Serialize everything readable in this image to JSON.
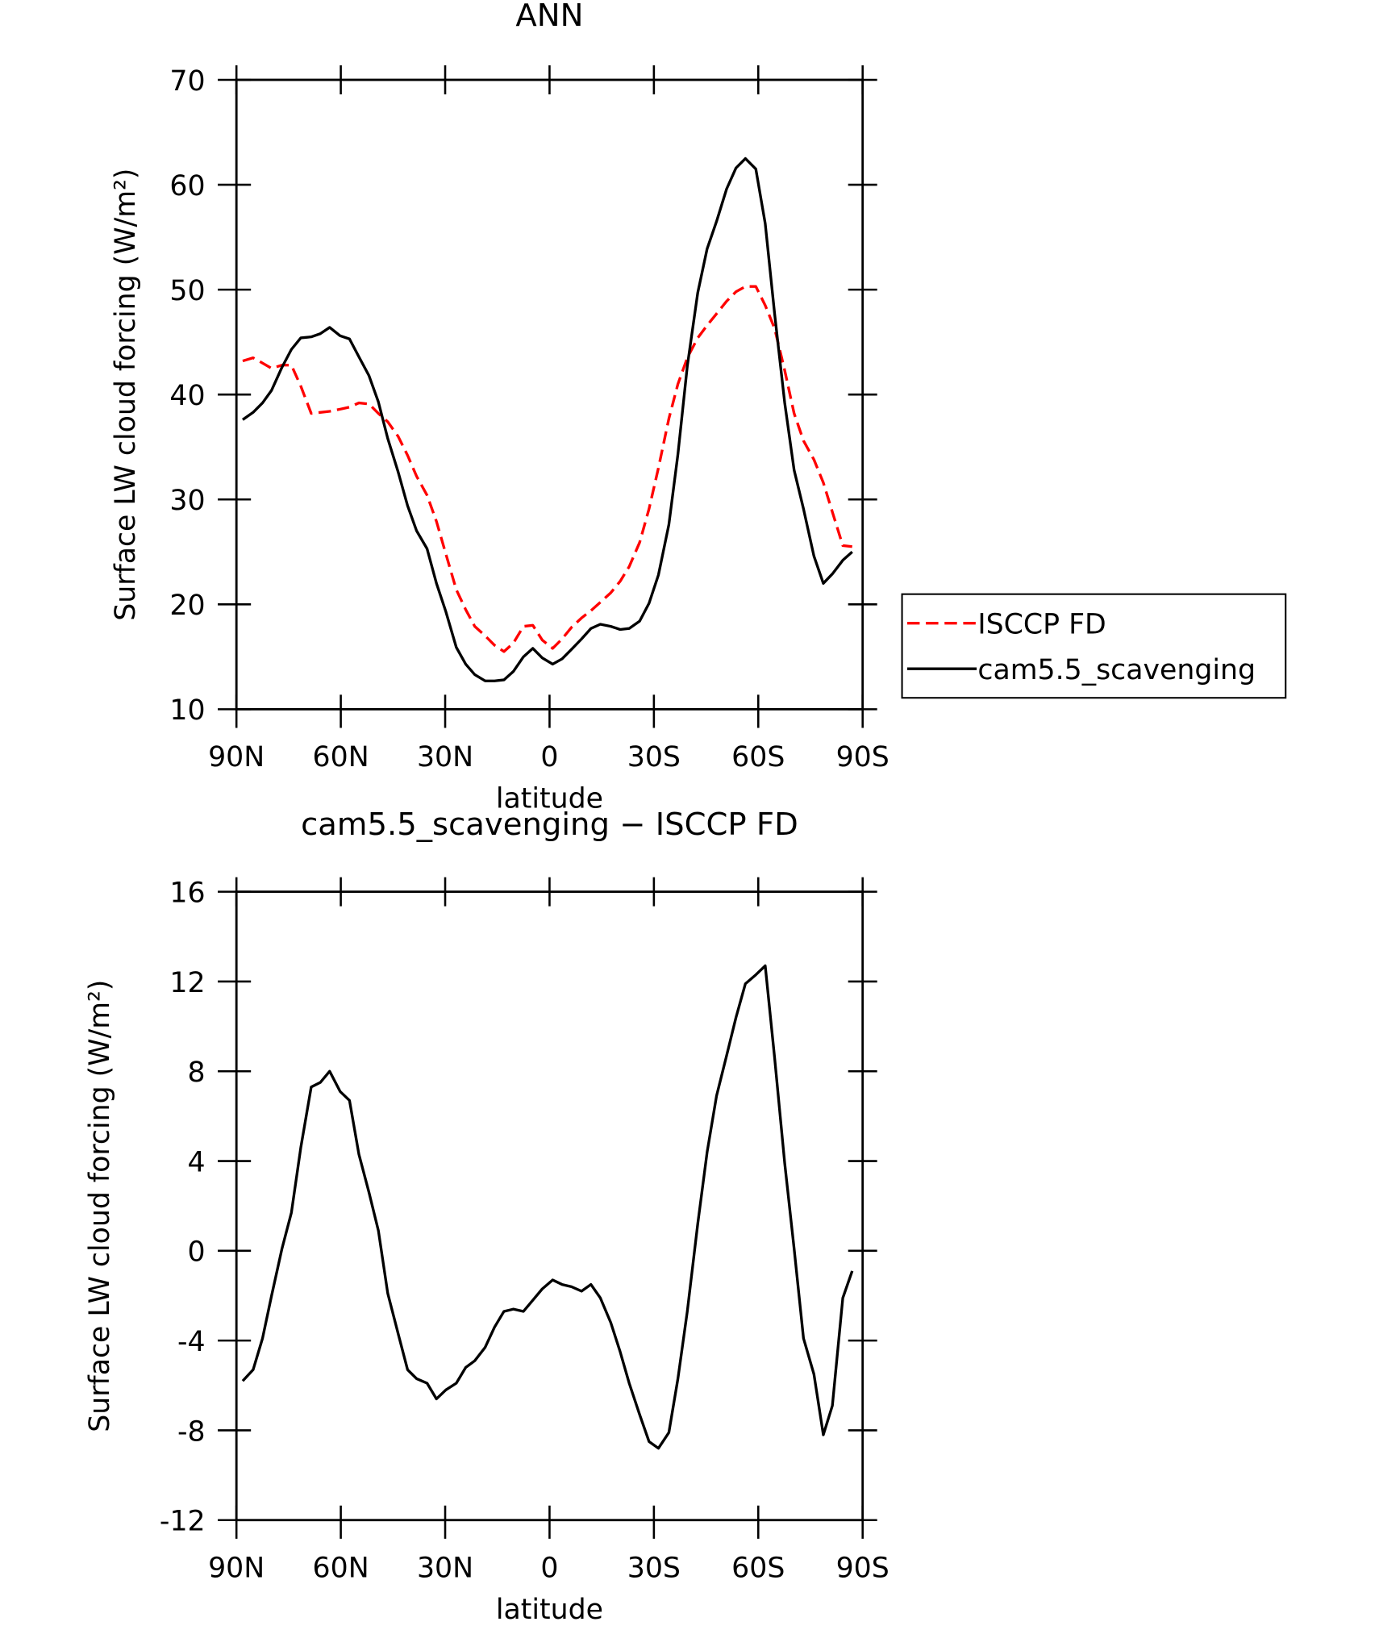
{
  "chart_data": [
    {
      "type": "line",
      "title": "ANN",
      "xlabel": "latitude",
      "ylabel": "Surface LW cloud forcing (W/m²)",
      "x": [
        88.2,
        85.2,
        82.5,
        79.9,
        76.9,
        74.2,
        71.5,
        68.5,
        65.9,
        63.2,
        60.2,
        57.5,
        54.8,
        51.9,
        49.2,
        46.5,
        43.5,
        40.8,
        38.2,
        35.2,
        32.5,
        29.8,
        26.8,
        24.1,
        21.5,
        18.5,
        15.8,
        13.1,
        10.4,
        7.5,
        4.8,
        2.1,
        -0.9,
        -3.6,
        -6.3,
        -9.2,
        -11.9,
        -14.6,
        -17.6,
        -20.3,
        -22.9,
        -25.9,
        -28.6,
        -31.3,
        -34.3,
        -36.9,
        -39.6,
        -42.6,
        -45.3,
        -48.0,
        -50.9,
        -53.6,
        -56.3,
        -59.3,
        -62.0,
        -64.7,
        -67.6,
        -70.3,
        -73.0,
        -76.0,
        -78.7,
        -81.3,
        -84.3,
        -87.0
      ],
      "series": [
        {
          "name": "ISCCP FD",
          "color": "#ff0000",
          "line_style": "dashed",
          "values": [
            43.2,
            43.5,
            43.0,
            42.5,
            42.8,
            42.8,
            40.8,
            38.2,
            38.3,
            38.4,
            38.6,
            38.8,
            39.2,
            39.1,
            38.2,
            37.4,
            36.0,
            34.2,
            32.2,
            30.4,
            27.9,
            24.8,
            21.4,
            19.5,
            17.9,
            17.0,
            16.1,
            15.5,
            16.3,
            17.9,
            18.0,
            16.6,
            15.8,
            16.7,
            17.8,
            18.7,
            19.4,
            20.2,
            21.1,
            22.2,
            23.6,
            25.9,
            29.1,
            33.0,
            37.7,
            41.0,
            43.5,
            45.4,
            46.6,
            47.7,
            48.9,
            49.8,
            50.3,
            50.3,
            48.5,
            46.3,
            42.3,
            38.2,
            35.6,
            33.8,
            31.6,
            28.8,
            25.6,
            25.5
          ]
        },
        {
          "name": "cam5.5_scavenging",
          "color": "#000000",
          "line_style": "solid",
          "values": [
            37.6,
            38.3,
            39.2,
            40.4,
            42.6,
            44.3,
            45.4,
            45.5,
            45.8,
            46.4,
            45.6,
            45.3,
            43.6,
            41.8,
            39.3,
            35.8,
            32.6,
            29.4,
            27.0,
            25.3,
            22.0,
            19.3,
            15.9,
            14.3,
            13.3,
            12.7,
            12.7,
            12.8,
            13.6,
            15.0,
            15.8,
            14.9,
            14.3,
            14.8,
            15.7,
            16.7,
            17.7,
            18.1,
            17.9,
            17.6,
            17.7,
            18.4,
            20.1,
            22.8,
            27.6,
            34.3,
            42.7,
            49.7,
            53.9,
            56.5,
            59.6,
            61.6,
            62.5,
            61.5,
            56.3,
            47.7,
            39.2,
            32.8,
            29.1,
            24.6,
            22.0,
            22.9,
            24.2,
            25.0
          ]
        }
      ],
      "xlim": [
        90,
        -90
      ],
      "xticks": [
        {
          "value": 90,
          "label": "90N"
        },
        {
          "value": 60,
          "label": "60N"
        },
        {
          "value": 30,
          "label": "30N"
        },
        0,
        {
          "value": -30,
          "label": "30S"
        },
        {
          "value": -60,
          "label": "60S"
        },
        {
          "value": -90,
          "label": "90S"
        }
      ],
      "ylim": [
        10,
        70
      ],
      "yticks": [
        10,
        20,
        30,
        40,
        50,
        60,
        70
      ],
      "legend": "right"
    },
    {
      "type": "line",
      "title": "cam5.5_scavenging − ISCCP FD",
      "xlabel": "latitude",
      "ylabel": "Surface LW cloud forcing (W/m²)",
      "x": [
        88.2,
        85.2,
        82.5,
        79.9,
        76.9,
        74.2,
        71.5,
        68.5,
        65.9,
        63.2,
        60.2,
        57.5,
        54.8,
        51.9,
        49.2,
        46.5,
        43.5,
        40.8,
        38.2,
        35.2,
        32.5,
        29.8,
        26.8,
        24.1,
        21.5,
        18.5,
        15.8,
        13.1,
        10.4,
        7.5,
        4.8,
        2.1,
        -0.9,
        -3.6,
        -6.3,
        -9.2,
        -11.9,
        -14.6,
        -17.6,
        -20.3,
        -22.9,
        -25.9,
        -28.6,
        -31.3,
        -34.3,
        -36.9,
        -39.6,
        -42.6,
        -45.3,
        -48.0,
        -50.9,
        -53.6,
        -56.3,
        -59.3,
        -62.0,
        -64.7,
        -67.6,
        -70.3,
        -73.0,
        -76.0,
        -78.7,
        -81.3,
        -84.3,
        -87.0
      ],
      "series": [
        {
          "color": "#000000",
          "line_style": "solid",
          "values": [
            -5.8,
            -5.3,
            -3.9,
            -2.0,
            0.1,
            1.7,
            4.6,
            7.3,
            7.5,
            8.0,
            7.1,
            6.7,
            4.3,
            2.6,
            0.9,
            -1.9,
            -3.7,
            -5.3,
            -5.7,
            -5.9,
            -6.6,
            -6.2,
            -5.9,
            -5.2,
            -4.9,
            -4.3,
            -3.4,
            -2.7,
            -2.6,
            -2.7,
            -2.2,
            -1.7,
            -1.3,
            -1.5,
            -1.6,
            -1.8,
            -1.5,
            -2.1,
            -3.2,
            -4.5,
            -5.9,
            -7.3,
            -8.5,
            -8.8,
            -8.1,
            -5.7,
            -2.7,
            1.2,
            4.4,
            6.9,
            8.7,
            10.4,
            11.9,
            12.3,
            12.7,
            8.6,
            3.9,
            0.1,
            -3.9,
            -5.5,
            -8.2,
            -6.9,
            -2.1,
            -0.9
          ]
        }
      ],
      "xlim": [
        90,
        -90
      ],
      "xticks": [
        {
          "value": 90,
          "label": "90N"
        },
        {
          "value": 60,
          "label": "60N"
        },
        {
          "value": 30,
          "label": "30N"
        },
        0,
        {
          "value": -30,
          "label": "30S"
        },
        {
          "value": -60,
          "label": "60S"
        },
        {
          "value": -90,
          "label": "90S"
        }
      ],
      "ylim": [
        -12,
        16
      ],
      "yticks": [
        -12,
        -8,
        -4,
        0,
        4,
        8,
        12,
        16
      ]
    }
  ]
}
